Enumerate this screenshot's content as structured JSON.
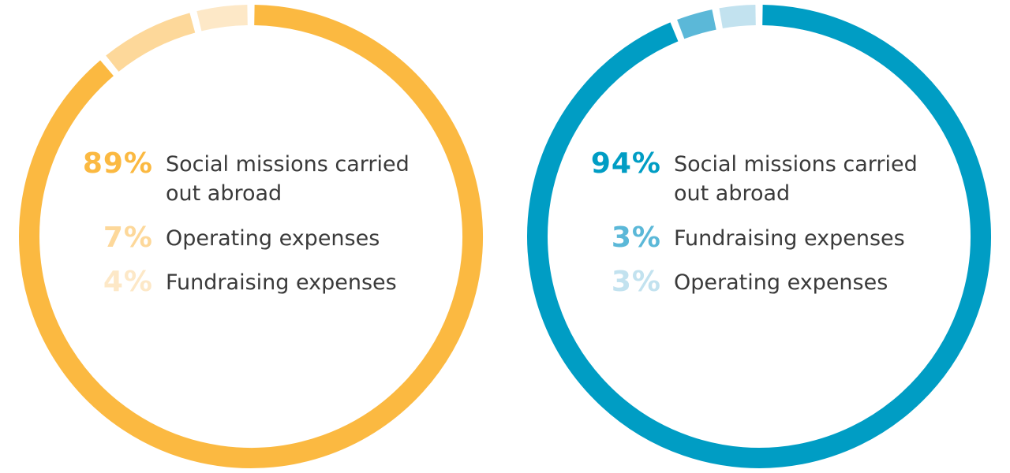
{
  "chart_data": [
    {
      "type": "pie",
      "variant": "donut",
      "slices": [
        {
          "value_label": "89%",
          "value": 89,
          "label": "Social missions carried out abroad",
          "color": "#fbb941"
        },
        {
          "value_label": "7%",
          "value": 7,
          "label": "Operating expenses",
          "color": "#fdd89a"
        },
        {
          "value_label": "4%",
          "value": 4,
          "label": "Fundraising expenses",
          "color": "#fde8c7"
        }
      ]
    },
    {
      "type": "pie",
      "variant": "donut",
      "slices": [
        {
          "value_label": "94%",
          "value": 94,
          "label": "Social missions carried out abroad",
          "color": "#009dc4"
        },
        {
          "value_label": "3%",
          "value": 3,
          "label": "Fundraising expenses",
          "color": "#5bb8d8"
        },
        {
          "value_label": "3%",
          "value": 3,
          "label": "Operating expenses",
          "color": "#c2e2ef"
        }
      ]
    }
  ]
}
